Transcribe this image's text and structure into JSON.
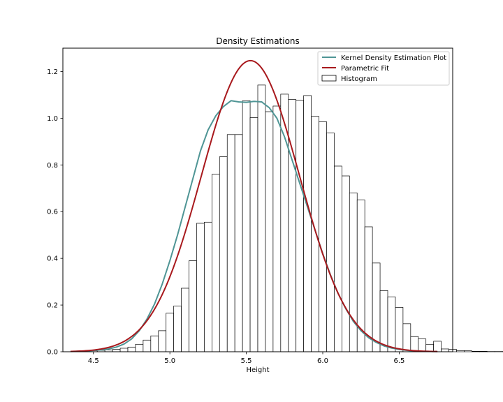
{
  "chart_data": {
    "type": "bar",
    "title": "Density Estimations",
    "xlabel": "Height",
    "ylabel": "",
    "xlim": [
      4.3,
      6.85
    ],
    "ylim": [
      0.0,
      1.3
    ],
    "xticks": [
      4.5,
      5.0,
      5.5,
      6.0,
      6.5
    ],
    "xtick_labels": [
      "4.5",
      "5.0",
      "5.5",
      "6.0",
      "6.5"
    ],
    "yticks": [
      0.0,
      0.2,
      0.4,
      0.6,
      0.8,
      1.0,
      1.2
    ],
    "ytick_labels": [
      "0.0",
      "0.2",
      "0.4",
      "0.6",
      "0.8",
      "1.0",
      "1.2"
    ],
    "grid": false,
    "legend_position": "upper right",
    "legend": [
      {
        "label": "Kernel Density Estimation Plot",
        "kind": "line",
        "color": "#4f9595"
      },
      {
        "label": "Parametric Fit",
        "kind": "line",
        "color": "#a8191d"
      },
      {
        "label": "Histogram",
        "kind": "patch",
        "color": "#ffffff"
      }
    ],
    "histogram": {
      "name": "Histogram",
      "bin_width": 0.05,
      "x_start": 4.375,
      "values": [
        0.002,
        0.002,
        0.004,
        0.006,
        0.008,
        0.01,
        0.015,
        0.02,
        0.032,
        0.05,
        0.068,
        0.09,
        0.165,
        0.196,
        0.272,
        0.39,
        0.55,
        0.555,
        0.76,
        0.835,
        0.93,
        0.93,
        1.075,
        1.003,
        1.142,
        1.028,
        1.052,
        1.103,
        1.08,
        1.077,
        1.097,
        1.008,
        0.985,
        0.937,
        0.795,
        0.753,
        0.68,
        0.65,
        0.535,
        0.38,
        0.262,
        0.235,
        0.19,
        0.12,
        0.065,
        0.055,
        0.032,
        0.045,
        0.012,
        0.01,
        0.005,
        0.004,
        0.002,
        0.002,
        0.001,
        0.001,
        0.001,
        0.001
      ]
    },
    "series": [
      {
        "name": "Kernel Density Estimation Plot",
        "color": "#4f9595",
        "x": [
          4.35,
          4.45,
          4.55,
          4.6,
          4.65,
          4.7,
          4.75,
          4.8,
          4.85,
          4.9,
          4.95,
          5.0,
          5.05,
          5.1,
          5.15,
          5.2,
          5.25,
          5.3,
          5.35,
          5.4,
          5.45,
          5.5,
          5.55,
          5.6,
          5.65,
          5.7,
          5.75,
          5.8,
          5.85,
          5.9,
          5.95,
          6.0,
          6.05,
          6.1,
          6.15,
          6.2,
          6.25,
          6.3,
          6.35,
          6.4,
          6.45,
          6.5,
          6.55,
          6.6,
          6.65,
          6.75
        ],
        "y": [
          0.001,
          0.003,
          0.008,
          0.012,
          0.02,
          0.033,
          0.055,
          0.09,
          0.14,
          0.205,
          0.29,
          0.39,
          0.5,
          0.62,
          0.74,
          0.86,
          0.95,
          1.01,
          1.05,
          1.075,
          1.07,
          1.068,
          1.072,
          1.07,
          1.045,
          1.0,
          0.92,
          0.82,
          0.72,
          0.62,
          0.52,
          0.42,
          0.33,
          0.25,
          0.185,
          0.13,
          0.09,
          0.06,
          0.04,
          0.025,
          0.016,
          0.01,
          0.006,
          0.003,
          0.002,
          0.001
        ]
      },
      {
        "name": "Parametric Fit",
        "color": "#a8191d",
        "mean": 5.527,
        "std": 0.32,
        "x_range": [
          4.35,
          6.75
        ]
      }
    ]
  }
}
